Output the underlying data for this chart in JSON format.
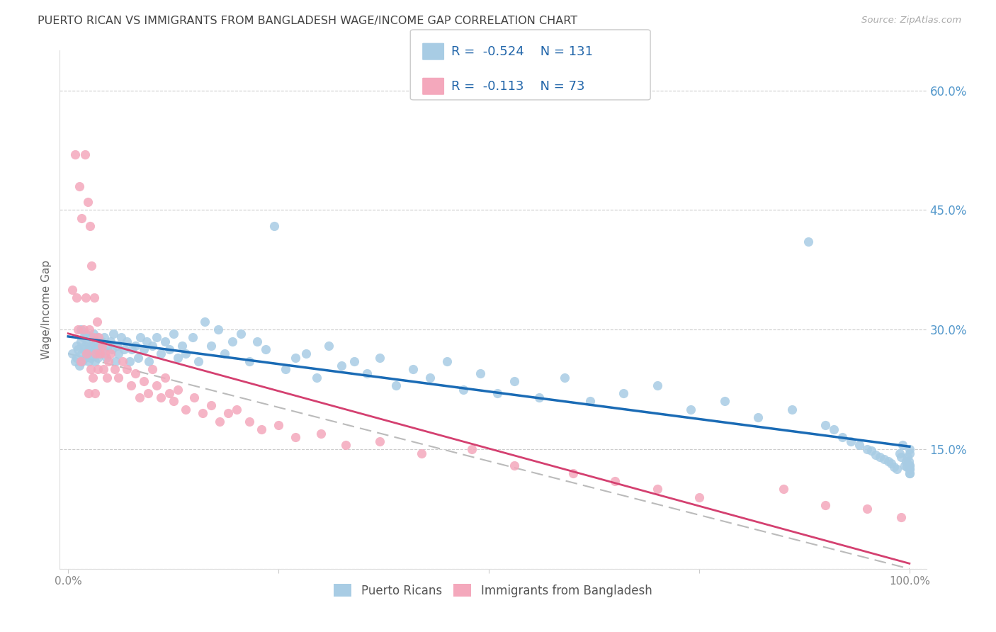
{
  "title": "PUERTO RICAN VS IMMIGRANTS FROM BANGLADESH WAGE/INCOME GAP CORRELATION CHART",
  "source": "Source: ZipAtlas.com",
  "ylabel": "Wage/Income Gap",
  "ylabel_right_ticks": [
    "60.0%",
    "45.0%",
    "30.0%",
    "15.0%"
  ],
  "ylabel_right_values": [
    0.6,
    0.45,
    0.3,
    0.15
  ],
  "legend_box": {
    "blue_r": "-0.524",
    "blue_n": "131",
    "pink_r": "-0.113",
    "pink_n": "73"
  },
  "blue_color": "#a8cce4",
  "pink_color": "#f4a8bc",
  "blue_line_color": "#1a6bb5",
  "pink_line_color": "#d44070",
  "background_color": "#ffffff",
  "xlim": [
    0.0,
    1.0
  ],
  "ylim": [
    0.0,
    0.65
  ],
  "blue_points_x": [
    0.005,
    0.008,
    0.01,
    0.01,
    0.012,
    0.013,
    0.015,
    0.015,
    0.016,
    0.017,
    0.018,
    0.019,
    0.02,
    0.02,
    0.021,
    0.022,
    0.023,
    0.024,
    0.025,
    0.026,
    0.027,
    0.028,
    0.029,
    0.03,
    0.031,
    0.032,
    0.033,
    0.034,
    0.035,
    0.036,
    0.038,
    0.04,
    0.042,
    0.043,
    0.045,
    0.047,
    0.05,
    0.052,
    0.054,
    0.056,
    0.058,
    0.06,
    0.063,
    0.066,
    0.07,
    0.073,
    0.076,
    0.08,
    0.083,
    0.086,
    0.09,
    0.093,
    0.096,
    0.1,
    0.105,
    0.11,
    0.115,
    0.12,
    0.125,
    0.13,
    0.135,
    0.14,
    0.148,
    0.155,
    0.162,
    0.17,
    0.178,
    0.186,
    0.195,
    0.205,
    0.215,
    0.225,
    0.235,
    0.245,
    0.258,
    0.27,
    0.283,
    0.295,
    0.31,
    0.325,
    0.34,
    0.355,
    0.37,
    0.39,
    0.41,
    0.43,
    0.45,
    0.47,
    0.49,
    0.51,
    0.53,
    0.56,
    0.59,
    0.62,
    0.66,
    0.7,
    0.74,
    0.78,
    0.82,
    0.86,
    0.88,
    0.9,
    0.91,
    0.92,
    0.93,
    0.94,
    0.95,
    0.955,
    0.96,
    0.965,
    0.97,
    0.975,
    0.978,
    0.982,
    0.985,
    0.988,
    0.99,
    0.992,
    0.994,
    0.996,
    0.997,
    0.998,
    0.999,
    1.0,
    1.0,
    1.0,
    1.0,
    1.0,
    1.0,
    1.0,
    1.0
  ],
  "blue_points_y": [
    0.27,
    0.26,
    0.265,
    0.28,
    0.275,
    0.255,
    0.285,
    0.3,
    0.27,
    0.26,
    0.29,
    0.275,
    0.28,
    0.265,
    0.295,
    0.27,
    0.285,
    0.26,
    0.275,
    0.29,
    0.265,
    0.28,
    0.27,
    0.295,
    0.285,
    0.26,
    0.275,
    0.29,
    0.265,
    0.28,
    0.27,
    0.285,
    0.275,
    0.29,
    0.265,
    0.28,
    0.285,
    0.275,
    0.295,
    0.26,
    0.28,
    0.27,
    0.29,
    0.275,
    0.285,
    0.26,
    0.275,
    0.28,
    0.265,
    0.29,
    0.275,
    0.285,
    0.26,
    0.28,
    0.29,
    0.27,
    0.285,
    0.275,
    0.295,
    0.265,
    0.28,
    0.27,
    0.29,
    0.26,
    0.31,
    0.28,
    0.3,
    0.27,
    0.285,
    0.295,
    0.26,
    0.285,
    0.275,
    0.43,
    0.25,
    0.265,
    0.27,
    0.24,
    0.28,
    0.255,
    0.26,
    0.245,
    0.265,
    0.23,
    0.25,
    0.24,
    0.26,
    0.225,
    0.245,
    0.22,
    0.235,
    0.215,
    0.24,
    0.21,
    0.22,
    0.23,
    0.2,
    0.21,
    0.19,
    0.2,
    0.41,
    0.18,
    0.175,
    0.165,
    0.16,
    0.155,
    0.15,
    0.148,
    0.143,
    0.14,
    0.138,
    0.135,
    0.132,
    0.128,
    0.125,
    0.145,
    0.14,
    0.155,
    0.13,
    0.135,
    0.128,
    0.14,
    0.135,
    0.15,
    0.145,
    0.125,
    0.13,
    0.12,
    0.125,
    0.13,
    0.12
  ],
  "pink_points_x": [
    0.005,
    0.008,
    0.01,
    0.012,
    0.013,
    0.015,
    0.016,
    0.018,
    0.02,
    0.021,
    0.022,
    0.023,
    0.024,
    0.025,
    0.026,
    0.027,
    0.028,
    0.029,
    0.03,
    0.031,
    0.032,
    0.033,
    0.034,
    0.035,
    0.036,
    0.038,
    0.04,
    0.042,
    0.044,
    0.046,
    0.048,
    0.05,
    0.055,
    0.06,
    0.065,
    0.07,
    0.075,
    0.08,
    0.085,
    0.09,
    0.095,
    0.1,
    0.105,
    0.11,
    0.115,
    0.12,
    0.125,
    0.13,
    0.14,
    0.15,
    0.16,
    0.17,
    0.18,
    0.19,
    0.2,
    0.215,
    0.23,
    0.25,
    0.27,
    0.3,
    0.33,
    0.37,
    0.42,
    0.48,
    0.53,
    0.6,
    0.65,
    0.7,
    0.75,
    0.85,
    0.9,
    0.95,
    0.99
  ],
  "pink_points_y": [
    0.35,
    0.52,
    0.34,
    0.3,
    0.48,
    0.26,
    0.44,
    0.3,
    0.52,
    0.34,
    0.27,
    0.46,
    0.22,
    0.3,
    0.43,
    0.25,
    0.38,
    0.24,
    0.29,
    0.34,
    0.22,
    0.27,
    0.31,
    0.25,
    0.29,
    0.27,
    0.28,
    0.25,
    0.27,
    0.24,
    0.26,
    0.27,
    0.25,
    0.24,
    0.26,
    0.25,
    0.23,
    0.245,
    0.215,
    0.235,
    0.22,
    0.25,
    0.23,
    0.215,
    0.24,
    0.22,
    0.21,
    0.225,
    0.2,
    0.215,
    0.195,
    0.205,
    0.185,
    0.195,
    0.2,
    0.185,
    0.175,
    0.18,
    0.165,
    0.17,
    0.155,
    0.16,
    0.145,
    0.15,
    0.13,
    0.12,
    0.11,
    0.1,
    0.09,
    0.1,
    0.08,
    0.075,
    0.065
  ]
}
